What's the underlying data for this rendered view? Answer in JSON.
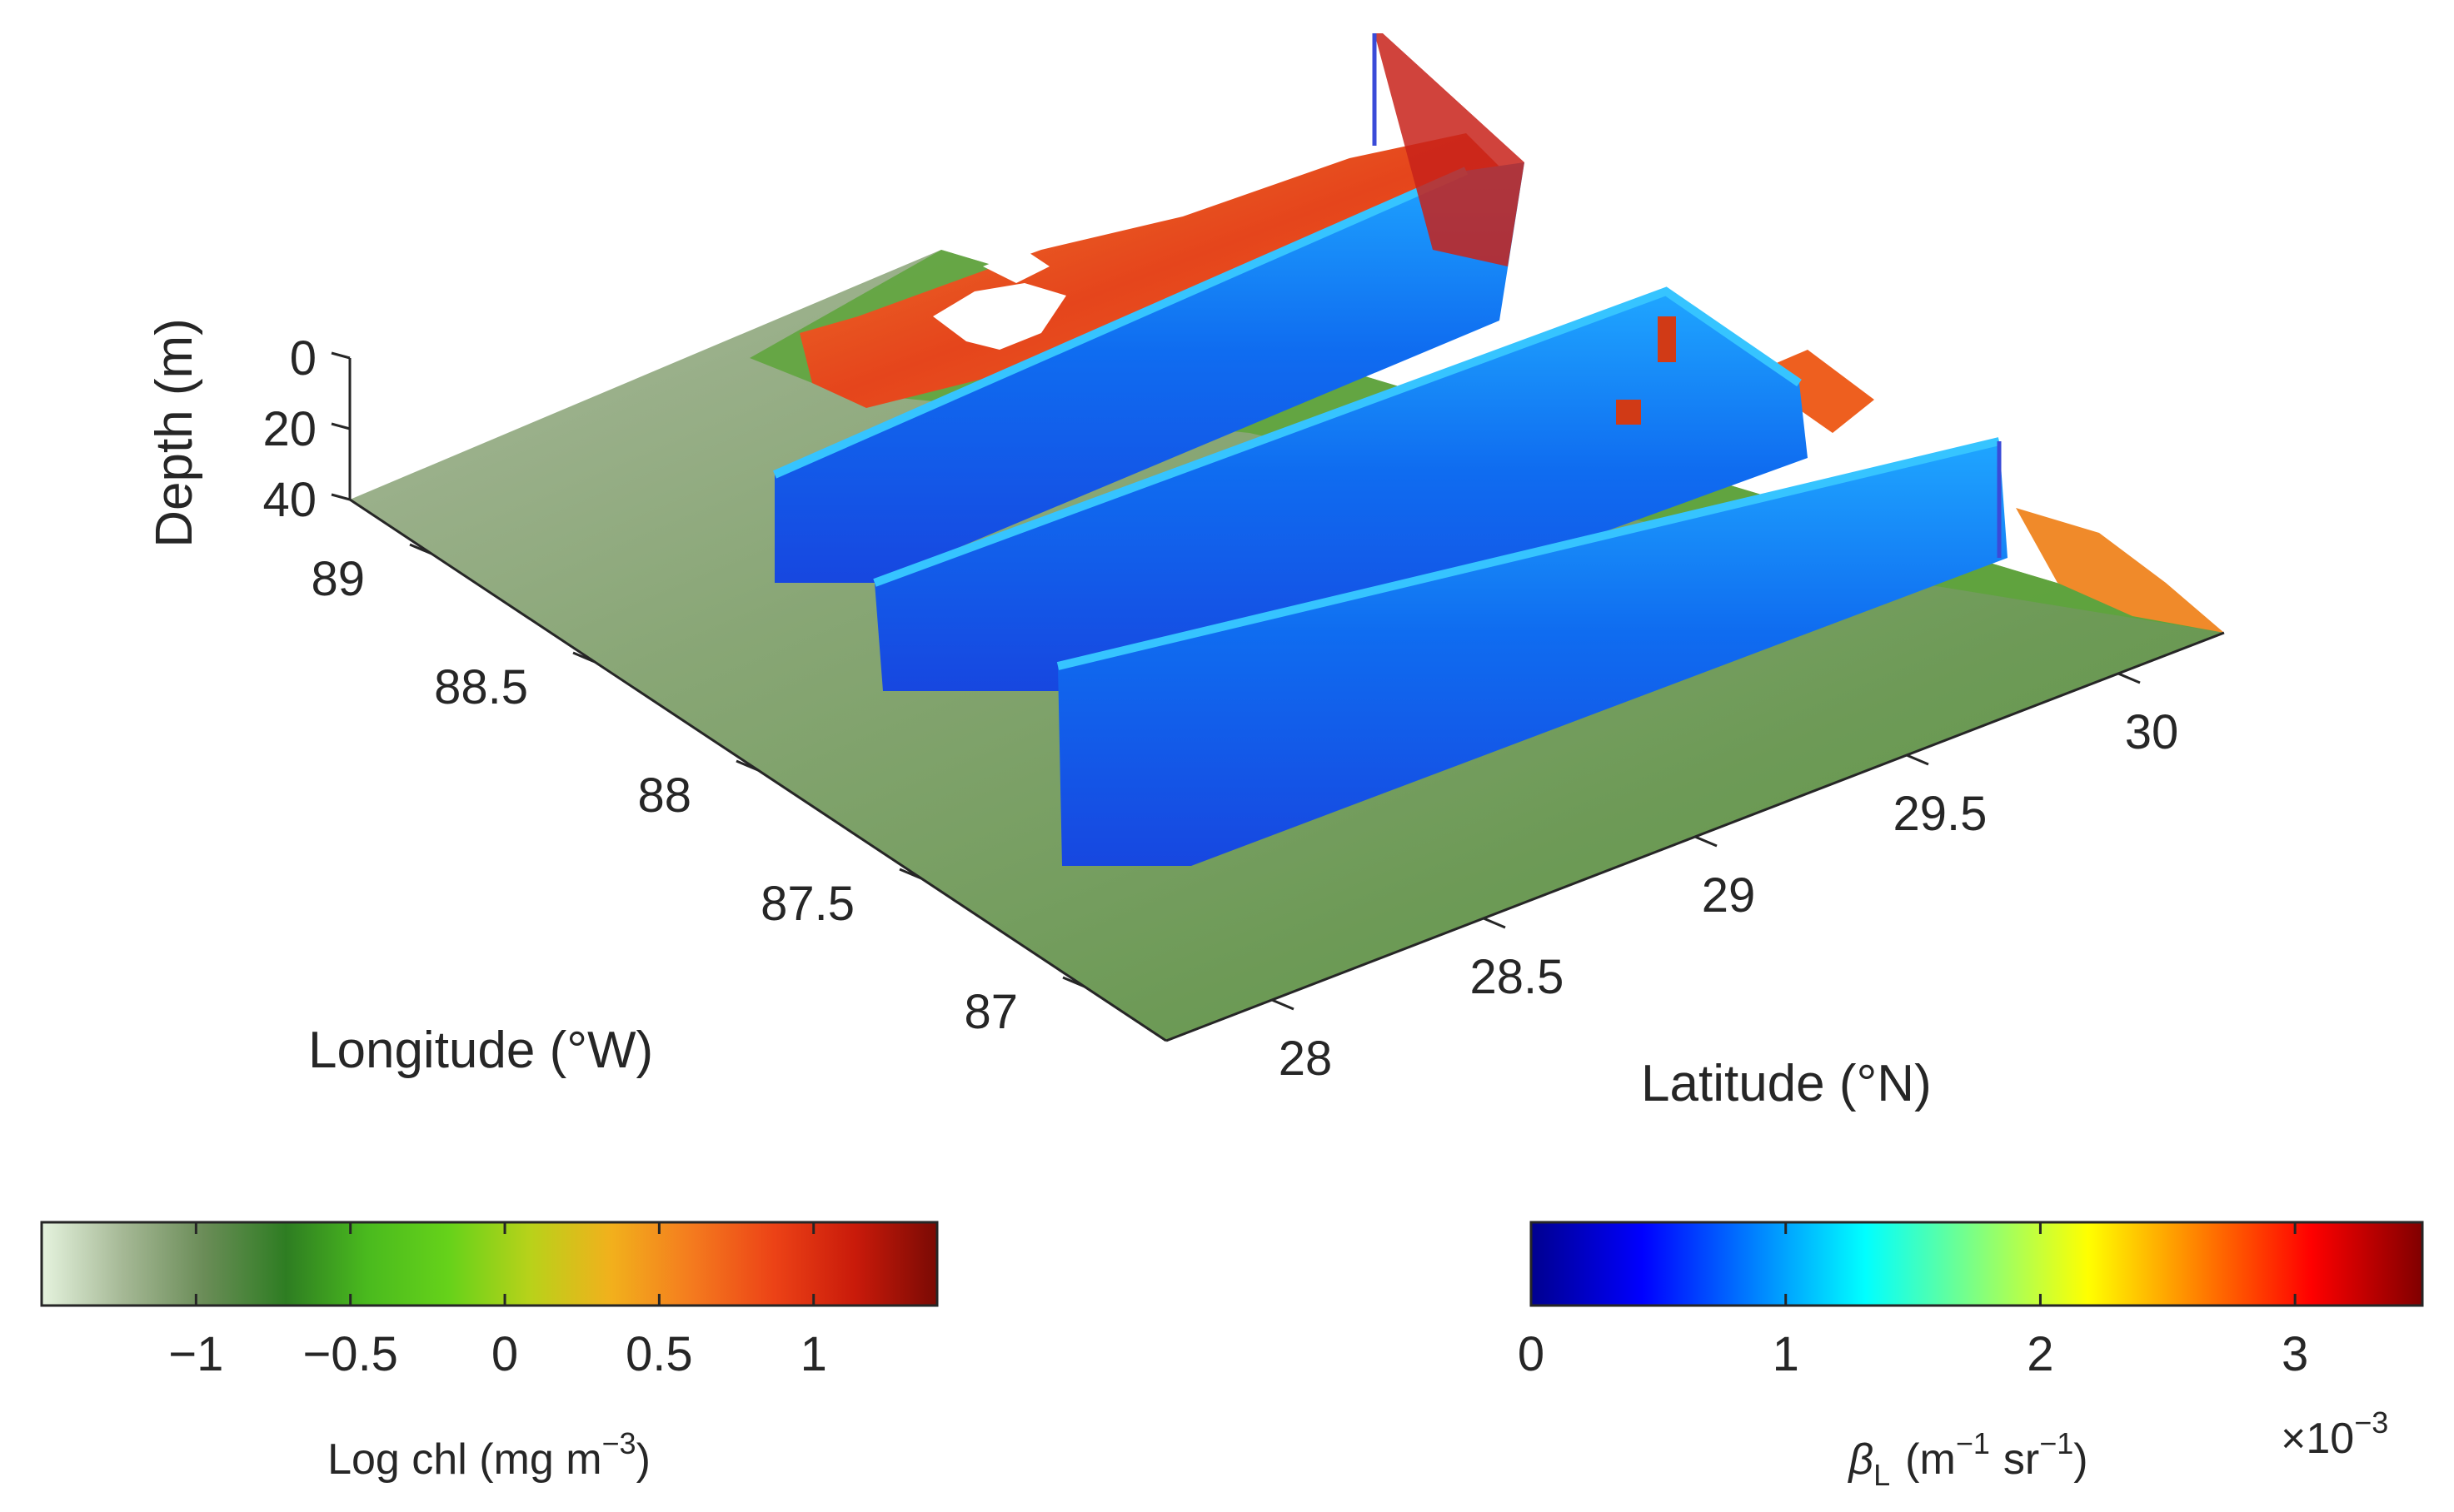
{
  "chart_data": [
    {
      "type": "surface",
      "axes": {
        "longitude": {
          "label": "Longitude (°W)",
          "ticks": [
            "89",
            "88.5",
            "88",
            "87.5",
            "87"
          ],
          "range": [
            86.75,
            89.25
          ]
        },
        "latitude": {
          "label": "Latitude (°N)",
          "ticks": [
            "28",
            "28.5",
            "29",
            "29.5",
            "30"
          ],
          "range": [
            27.75,
            30.25
          ]
        },
        "depth": {
          "label": "Depth (m)",
          "ticks": [
            "0",
            "20",
            "40"
          ],
          "range": [
            0,
            40
          ]
        }
      },
      "layers": [
        {
          "kind": "sea-surface map",
          "variable": "log chl"
        },
        {
          "kind": "vertical curtain along ship track",
          "variable": "beta_L"
        }
      ],
      "grid": false
    },
    {
      "type": "colorbar",
      "label_text": "Log chl (mg m",
      "label_exp": "−3",
      "label_close": ")",
      "ticks": [
        "−1",
        "−0.5",
        "0",
        "0.5",
        "1"
      ],
      "tick_values": [
        -1,
        -0.5,
        0,
        0.5,
        1
      ],
      "range": [
        -1.5,
        1.4
      ],
      "colors": [
        "#e5f3de",
        "#a5b895",
        "#6a8c57",
        "#2e7d22",
        "#4aba1e",
        "#66d21a",
        "#b8d21a",
        "#f2b01c",
        "#f47a1e",
        "#ec4216",
        "#c91a0a",
        "#7a0a04"
      ],
      "placement": "bottom-left"
    },
    {
      "type": "colorbar",
      "label_symbol": "β",
      "label_sub": "L",
      "label_unit1": "(m",
      "label_exp1": "−1",
      "label_unit2": "sr",
      "label_exp2": "−1",
      "label_close": ")",
      "multiplier": "×10",
      "multiplier_exp": "−3",
      "ticks": [
        "0",
        "1",
        "2",
        "3"
      ],
      "tick_values": [
        0,
        1,
        2,
        3
      ],
      "range": [
        0,
        3.5
      ],
      "colors": [
        "#00008f",
        "#0000ff",
        "#0080ff",
        "#00ffff",
        "#80ff80",
        "#ffff00",
        "#ff8000",
        "#ff0000",
        "#800000"
      ],
      "placement": "bottom-right"
    }
  ]
}
